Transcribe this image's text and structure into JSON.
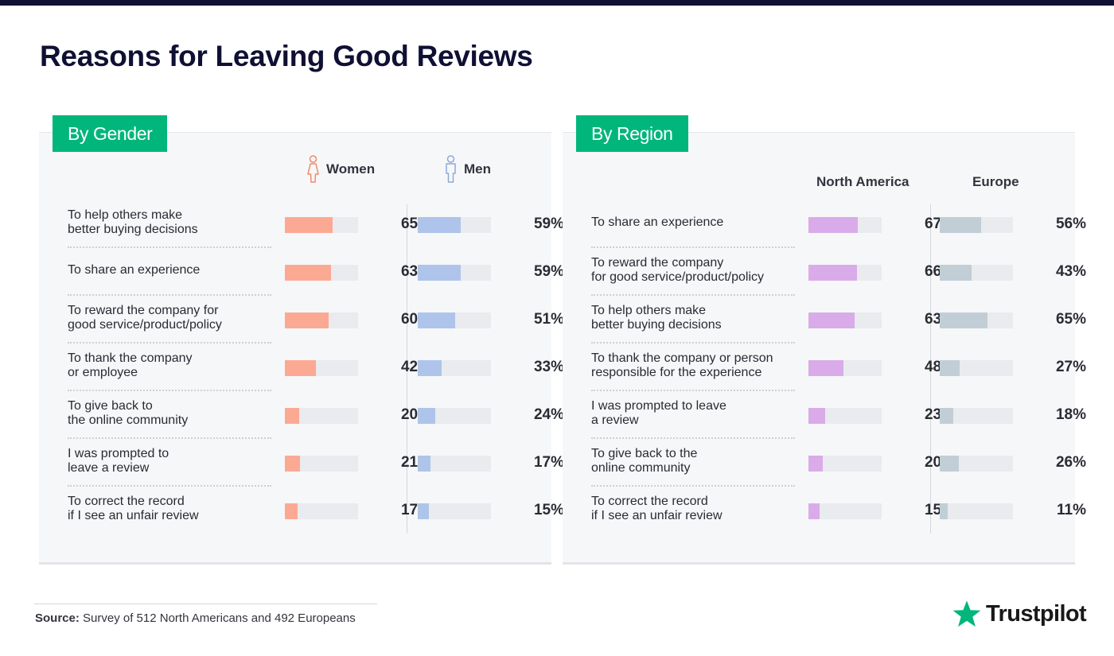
{
  "title": "Reasons for Leaving Good Reviews",
  "colors": {
    "accent": "#00b67a",
    "women": "#fca993",
    "men": "#aec4ea",
    "north_america": "#d9ace9",
    "europe": "#c2ced6",
    "track": "#e9ebee"
  },
  "chart_data": [
    {
      "type": "bar",
      "title": "By Gender",
      "unit": "%",
      "categories": [
        "To help others make\nbetter buying decisions",
        "To share an experience",
        "To reward the company for\ngood service/product/policy",
        "To thank the company\nor employee",
        "To give back to\nthe online community",
        "I was prompted to\nleave a review",
        "To correct the record\nif I see an unfair review"
      ],
      "series": [
        {
          "name": "Women",
          "icon": "woman-icon",
          "color": "#fca993",
          "values": [
            65,
            63,
            60,
            42,
            20,
            21,
            17
          ]
        },
        {
          "name": "Men",
          "icon": "man-icon",
          "color": "#aec4ea",
          "values": [
            59,
            59,
            51,
            33,
            24,
            17,
            15
          ]
        }
      ],
      "ylim": [
        0,
        100
      ]
    },
    {
      "type": "bar",
      "title": "By Region",
      "unit": "%",
      "categories": [
        "To share an experience",
        "To reward the company\nfor good service/product/policy",
        "To help others make\nbetter buying decisions",
        "To thank the company or person\nresponsible for the experience",
        "I was prompted to leave\na review",
        "To give back to the\nonline community",
        "To correct the record\nif I see an unfair review"
      ],
      "series": [
        {
          "name": "North America",
          "color": "#d9ace9",
          "values": [
            67,
            66,
            63,
            48,
            23,
            20,
            15
          ]
        },
        {
          "name": "Europe",
          "color": "#c2ced6",
          "values": [
            56,
            43,
            65,
            27,
            18,
            26,
            11
          ]
        }
      ],
      "ylim": [
        0,
        100
      ]
    }
  ],
  "tabs": {
    "gender_prefix": "By",
    "gender_word": "Gender",
    "region_prefix": "By",
    "region_word": "Region"
  },
  "footer": {
    "source_label": "Source:",
    "source_text": "Survey of 512 North Americans and 492 Europeans",
    "brand": "Trustpilot",
    "brand_icon": "star-icon"
  }
}
